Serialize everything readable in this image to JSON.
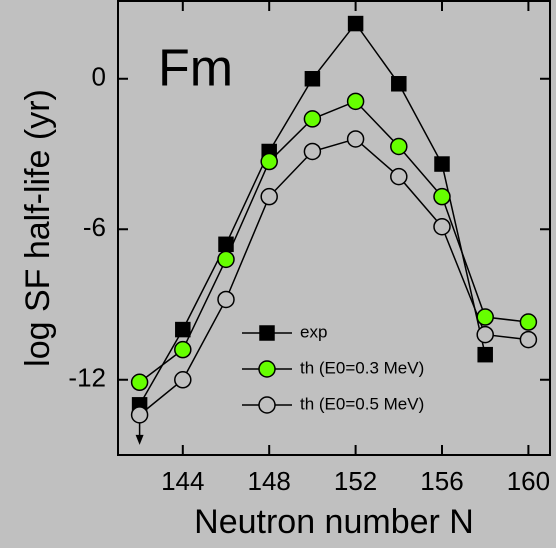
{
  "chart_data": {
    "type": "line",
    "annotation": "Fm",
    "x_label": "Neutron number N",
    "y_label": "log SF half-life (yr)",
    "x": [
      142,
      144,
      146,
      148,
      150,
      152,
      154,
      156,
      158,
      160
    ],
    "series": [
      {
        "name": "exp",
        "color": "#000000",
        "marker": "square",
        "values": [
          -13.0,
          -10.0,
          -6.6,
          -2.9,
          0.0,
          2.2,
          -0.2,
          -3.4,
          -11.0,
          null
        ]
      },
      {
        "name": "th (E0=0.3 MeV)",
        "color": "#66ff00",
        "marker": "circle",
        "values": [
          -12.1,
          -10.8,
          -7.2,
          -3.3,
          -1.6,
          -0.9,
          -2.7,
          -4.7,
          -9.5,
          -9.7
        ]
      },
      {
        "name": "th (E0=0.5 MeV)",
        "color": "#c0c0c0",
        "marker": "circle",
        "values": [
          -13.4,
          -12.0,
          -8.8,
          -4.7,
          -2.9,
          -2.4,
          -3.9,
          -5.9,
          -10.2,
          -10.4
        ]
      }
    ],
    "xlim": [
      141,
      161
    ],
    "ylim": [
      -15,
      3.1
    ],
    "xticks": [
      144,
      148,
      152,
      156,
      160
    ],
    "yticks": [
      -12,
      -6,
      0
    ],
    "legend": "lower-center"
  }
}
